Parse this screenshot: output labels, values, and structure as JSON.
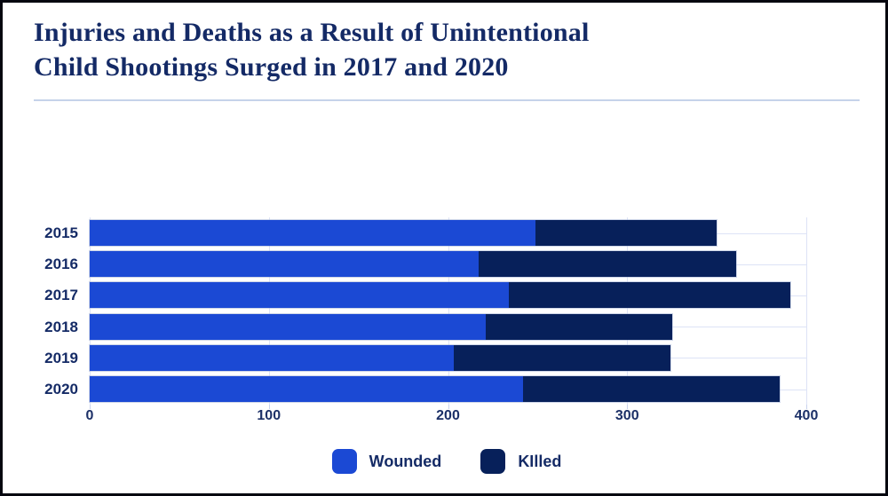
{
  "header": {
    "title_line1": "Injuries and Deaths as a Result of Unintentional",
    "title_line2": "Child Shootings Surged in 2017 and 2020"
  },
  "chart_data": {
    "type": "bar",
    "orientation": "horizontal",
    "stacked": true,
    "title": "Injuries and Deaths as a Result of Unintentional Child Shootings Surged in 2017 and 2020",
    "categories": [
      "2015",
      "2016",
      "2017",
      "2018",
      "2019",
      "2020"
    ],
    "series": [
      {
        "name": "Wounded",
        "color": "#1b49d4",
        "values": [
          249,
          217,
          234,
          221,
          203,
          242
        ]
      },
      {
        "name": "KIlled",
        "color": "#07205a",
        "values": [
          101,
          144,
          157,
          104,
          121,
          143
        ]
      }
    ],
    "totals": [
      350,
      361,
      391,
      325,
      324,
      385
    ],
    "xlim": [
      0,
      400
    ],
    "x_ticks": [
      "0",
      "100",
      "200",
      "300",
      "400"
    ],
    "grid": true,
    "legend_position": "bottom"
  },
  "legend": {
    "items": [
      {
        "label": "Wounded",
        "color": "#1b49d4"
      },
      {
        "label": "KIlled",
        "color": "#07205a"
      }
    ]
  },
  "colors": {
    "accent_blue": "#1b49d4",
    "accent_navy": "#07205a",
    "title_text": "#142a66",
    "gridline": "#dde3f6",
    "divider": "#c6d3ea",
    "frame_border": "#05060f"
  }
}
